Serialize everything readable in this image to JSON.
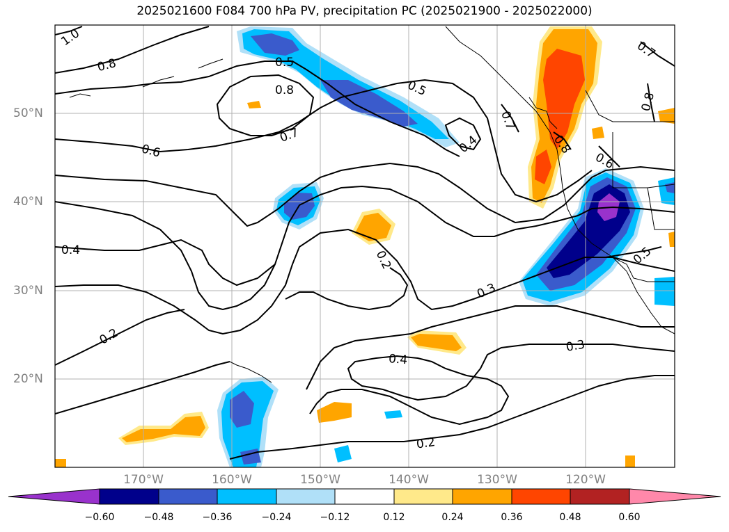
{
  "title": "2025021600 F084 700 hPa PV, precipitation PC (2025021900 - 2025022000)",
  "lon_labels": [
    "170°W",
    "160°W",
    "150°W",
    "140°W",
    "130°W",
    "120°W"
  ],
  "lat_labels": [
    "50°N",
    "40°N",
    "30°N",
    "20°N"
  ],
  "contour_labels": [
    "1.0",
    "0.8",
    "0.8",
    "0.7",
    "0.6",
    "0.5",
    "0.5",
    "0.4",
    "0.4",
    "0.2",
    "0.2",
    "0.2",
    "0.3",
    "0.3",
    "0.4",
    "0.7",
    "0.7",
    "0.8",
    "0.8",
    "0.6",
    "0.5"
  ],
  "colorbar": {
    "tick_labels": [
      "−0.60",
      "−0.48",
      "−0.36",
      "−0.24",
      "−0.12",
      "0.12",
      "0.24",
      "0.36",
      "0.48",
      "0.60"
    ],
    "colors": [
      "#9932cc",
      "#00008b",
      "#3a5bcc",
      "#00bfff",
      "#b0e0f8",
      "#ffffff",
      "#ffe98a",
      "#ffa500",
      "#ff4500",
      "#b22222",
      "#ff88aa"
    ]
  }
}
